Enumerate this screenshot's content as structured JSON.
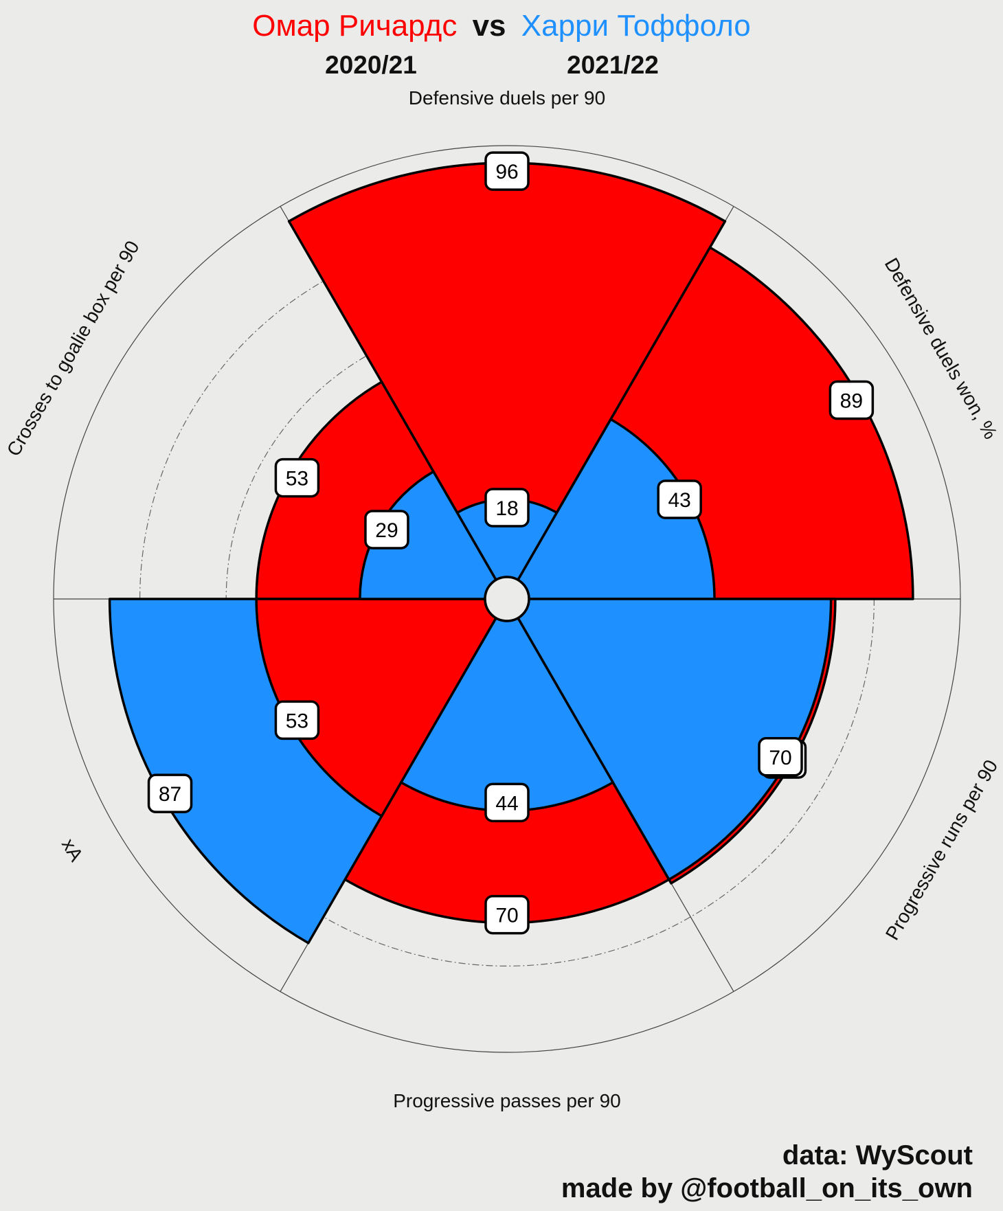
{
  "header": {
    "player1": "Омар Ричардс",
    "vs": "vs",
    "player2": "Харри Тоффоло",
    "season1": "2020/21",
    "season2": "2021/22"
  },
  "colors": {
    "player1": "#ff0000",
    "player2": "#1e90ff",
    "background": "#ebebe9",
    "label_box": "#ffffff"
  },
  "footer": {
    "data_source": "data: WyScout",
    "made_by": "made by @football_on_its_own"
  },
  "chart_data": {
    "type": "polar-bar",
    "range": [
      0,
      100
    ],
    "grid": true,
    "categories": [
      "Defensive duels per 90",
      "Defensive duels won, %",
      "Progressive runs per 90",
      "Progressive passes per 90",
      "xA",
      "Crosses to goalie box per 90"
    ],
    "series": [
      {
        "name": "Омар Ричардс",
        "season": "2020/21",
        "values": [
          96,
          89,
          71,
          70,
          53,
          53
        ]
      },
      {
        "name": "Харри Тоффоло",
        "season": "2021/22",
        "values": [
          18,
          43,
          70,
          44,
          87,
          29
        ]
      }
    ]
  }
}
